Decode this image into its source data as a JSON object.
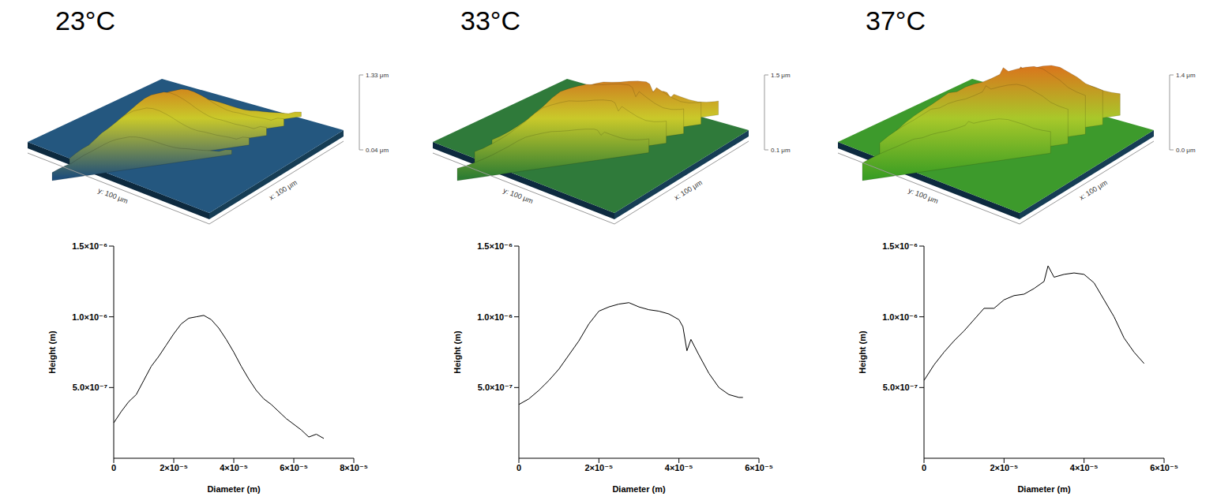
{
  "chart_data": [
    {
      "type": "line",
      "title": "23°C",
      "x_label": "Diameter (m)",
      "y_label": "Height (m)",
      "x": [
        0,
        2.5e-06,
        5e-06,
        7.5e-06,
        1e-05,
        1.25e-05,
        1.5e-05,
        1.75e-05,
        2e-05,
        2.25e-05,
        2.5e-05,
        2.75e-05,
        3e-05,
        3.25e-05,
        3.5e-05,
        3.75e-05,
        4e-05,
        4.25e-05,
        4.5e-05,
        4.75e-05,
        5e-05,
        5.25e-05,
        5.5e-05,
        5.75e-05,
        6e-05,
        6.25e-05,
        6.5e-05,
        6.75e-05,
        7e-05
      ],
      "values": [
        2.5e-07,
        3.3e-07,
        4e-07,
        4.5e-07,
        5.5e-07,
        6.5e-07,
        7.2e-07,
        8e-07,
        8.8e-07,
        9.5e-07,
        9.9e-07,
        1e-06,
        1.01e-06,
        9.8e-07,
        9.2e-07,
        8.4e-07,
        7.5e-07,
        6.5e-07,
        5.6e-07,
        4.8e-07,
        4.2e-07,
        3.8e-07,
        3.3e-07,
        2.8e-07,
        2.4e-07,
        2e-07,
        1.5e-07,
        1.7e-07,
        1.4e-07
      ],
      "color": "#000000",
      "xlim": [
        0,
        8e-05
      ],
      "xticks": [
        0,
        {
          "value": 2e-05,
          "label": "2×10⁻⁵"
        },
        {
          "value": 4e-05,
          "label": "4×10⁻⁵"
        },
        {
          "value": 6e-05,
          "label": "6×10⁻⁵"
        },
        {
          "value": 8e-05,
          "label": "8×10⁻⁵"
        }
      ],
      "ylim": [
        0,
        1.5e-06
      ],
      "yticks": [
        {
          "value": 5e-07,
          "label": "5.0×10⁻⁷"
        },
        {
          "value": 1e-06,
          "label": "1.0×10⁻⁶"
        },
        {
          "value": 1.5e-06,
          "label": "1.5×10⁻⁶"
        }
      ],
      "grid": false
    },
    {
      "type": "line",
      "title": "33°C",
      "x_label": "Diameter (m)",
      "y_label": "Height (m)",
      "x": [
        0,
        2.5e-06,
        5e-06,
        7.5e-06,
        1e-05,
        1.25e-05,
        1.5e-05,
        1.75e-05,
        2e-05,
        2.25e-05,
        2.5e-05,
        2.75e-05,
        3e-05,
        3.25e-05,
        3.5e-05,
        3.75e-05,
        4e-05,
        4.1e-05,
        4.2e-05,
        4.3e-05,
        4.5e-05,
        4.75e-05,
        5e-05,
        5.25e-05,
        5.5e-05,
        5.6e-05
      ],
      "values": [
        3.8e-07,
        4.2e-07,
        4.8e-07,
        5.5e-07,
        6.3e-07,
        7.3e-07,
        8.3e-07,
        9.5e-07,
        1.04e-06,
        1.07e-06,
        1.09e-06,
        1.1e-06,
        1.07e-06,
        1.05e-06,
        1.04e-06,
        1.02e-06,
        9.8e-07,
        9.3e-07,
        7.6e-07,
        8.4e-07,
        7.3e-07,
        6e-07,
        5e-07,
        4.5e-07,
        4.3e-07,
        4.3e-07
      ],
      "color": "#000000",
      "xlim": [
        0,
        6e-05
      ],
      "xticks": [
        0,
        {
          "value": 2e-05,
          "label": "2×10⁻⁵"
        },
        {
          "value": 4e-05,
          "label": "4×10⁻⁵"
        },
        {
          "value": 6e-05,
          "label": "6×10⁻⁵"
        }
      ],
      "ylim": [
        0,
        1.5e-06
      ],
      "yticks": [
        {
          "value": 5e-07,
          "label": "5.0×10⁻⁷"
        },
        {
          "value": 1e-06,
          "label": "1.0×10⁻⁶"
        },
        {
          "value": 1.5e-06,
          "label": "1.5×10⁻⁶"
        }
      ],
      "grid": false
    },
    {
      "type": "line",
      "title": "37°C",
      "x_label": "Diameter (m)",
      "y_label": "Height (m)",
      "x": [
        0,
        2.5e-06,
        5e-06,
        7.5e-06,
        1e-05,
        1.25e-05,
        1.5e-05,
        1.75e-05,
        2e-05,
        2.25e-05,
        2.5e-05,
        2.75e-05,
        3e-05,
        3.1e-05,
        3.25e-05,
        3.5e-05,
        3.75e-05,
        4e-05,
        4.25e-05,
        4.5e-05,
        4.75e-05,
        5e-05,
        5.25e-05,
        5.5e-05
      ],
      "values": [
        5.5e-07,
        6.6e-07,
        7.5e-07,
        8.3e-07,
        9e-07,
        9.8e-07,
        1.06e-06,
        1.06e-06,
        1.12e-06,
        1.15e-06,
        1.16e-06,
        1.2e-06,
        1.25e-06,
        1.36e-06,
        1.28e-06,
        1.3e-06,
        1.31e-06,
        1.3e-06,
        1.24e-06,
        1.12e-06,
        1e-06,
        8.5e-07,
        7.5e-07,
        6.7e-07
      ],
      "color": "#000000",
      "xlim": [
        0,
        6e-05
      ],
      "xticks": [
        0,
        {
          "value": 2e-05,
          "label": "2×10⁻⁵"
        },
        {
          "value": 4e-05,
          "label": "4×10⁻⁵"
        },
        {
          "value": 6e-05,
          "label": "6×10⁻⁵"
        }
      ],
      "ylim": [
        0,
        1.5e-06
      ],
      "yticks": [
        {
          "value": 5e-07,
          "label": "5.0×10⁻⁷"
        },
        {
          "value": 1e-06,
          "label": "1.0×10⁻⁶"
        },
        {
          "value": 1.5e-06,
          "label": "1.5×10⁻⁶"
        }
      ],
      "grid": false
    }
  ],
  "surfaces": [
    {
      "z_max_label": "1.33 μm",
      "z_min_label": "0.04 μm",
      "y_label": "y: 100 μm",
      "x_label": "x: 100 μm"
    },
    {
      "z_max_label": "1.5 μm",
      "z_min_label": "0.1 μm",
      "y_label": "y: 100 μm",
      "x_label": "x: 100 μm"
    },
    {
      "z_max_label": "1.4 μm",
      "z_min_label": "0.0 μm",
      "y_label": "y: 100 μm",
      "x_label": "x: 100 μm"
    }
  ]
}
